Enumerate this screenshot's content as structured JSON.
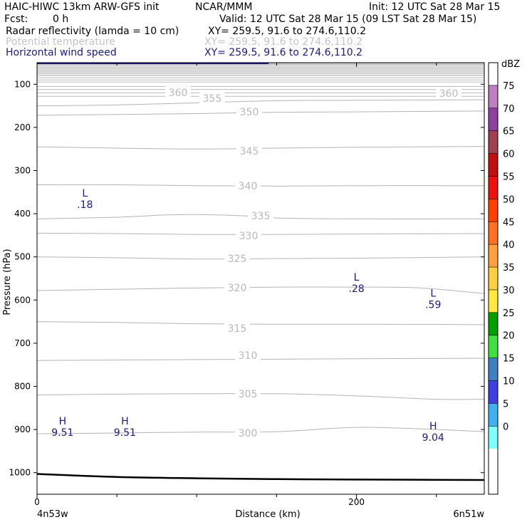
{
  "header": {
    "model": "HAIC-HIWC 13km ARW-GFS init",
    "org": "NCAR/MMM",
    "init": "Init: 12 UTC Sat 28 Mar 15",
    "fcst_label": "Fcst:",
    "fcst_value": "0 h",
    "valid": "Valid: 12 UTC Sat 28 Mar 15 (09 LST Sat 28 Mar 15)",
    "fields": [
      {
        "name": "Radar reflectivity (lamda = 10 cm)",
        "xy": "XY= 259.5, 91.6 to 274.6,110.2",
        "color": "#000000"
      },
      {
        "name": "Potential temperature",
        "xy": "XY= 259.5, 91.6 to 274.6,110.2",
        "color": "#c4c4c4"
      },
      {
        "name": "Horizontal wind speed",
        "xy": "XY= 259.5, 91.6 to 274.6,110.2",
        "color": "#1a1a80"
      }
    ]
  },
  "chart_data": {
    "type": "line",
    "title": "",
    "xlabel": "Distance (km)",
    "ylabel": "Pressure (hPa)",
    "xlim": [
      0,
      280
    ],
    "ylim": [
      1050,
      50
    ],
    "y_ticks": [
      "100",
      "200",
      "300",
      "400",
      "500",
      "600",
      "700",
      "800",
      "900",
      "1000"
    ],
    "y_tick_values": [
      100,
      200,
      300,
      400,
      500,
      600,
      700,
      800,
      900,
      1000
    ],
    "x_ticks": [
      "0",
      "200"
    ],
    "x_tick_values": [
      0,
      200
    ],
    "x_minor_tick_values": [
      50,
      100,
      150,
      250
    ],
    "endpoints": {
      "left": "4n53w",
      "right": "6n51w"
    },
    "potential_temperature_contours": [
      {
        "label": "360",
        "points": [
          [
            0,
            80
          ],
          [
            280,
            80
          ]
        ]
      },
      {
        "label": "355",
        "points": [
          [
            0,
            150
          ],
          [
            50,
            148
          ],
          [
            100,
            143
          ],
          [
            150,
            138
          ],
          [
            200,
            137
          ],
          [
            280,
            136
          ]
        ]
      },
      {
        "label": "350",
        "points": [
          [
            0,
            172
          ],
          [
            50,
            170
          ],
          [
            100,
            168
          ],
          [
            150,
            165
          ],
          [
            200,
            164
          ],
          [
            280,
            162
          ]
        ]
      },
      {
        "label": "345",
        "points": [
          [
            0,
            245
          ],
          [
            50,
            248
          ],
          [
            100,
            250
          ],
          [
            150,
            248
          ],
          [
            200,
            246
          ],
          [
            280,
            244
          ]
        ]
      },
      {
        "label": "340",
        "points": [
          [
            0,
            333
          ],
          [
            50,
            333
          ],
          [
            100,
            335
          ],
          [
            150,
            336
          ],
          [
            200,
            335
          ],
          [
            280,
            335
          ]
        ]
      },
      {
        "label": "335",
        "points": [
          [
            0,
            412
          ],
          [
            50,
            408
          ],
          [
            80,
            403
          ],
          [
            100,
            402
          ],
          [
            130,
            405
          ],
          [
            150,
            410
          ],
          [
            200,
            412
          ],
          [
            280,
            412
          ]
        ]
      },
      {
        "label": "330",
        "points": [
          [
            0,
            445
          ],
          [
            50,
            446
          ],
          [
            100,
            448
          ],
          [
            150,
            448
          ],
          [
            200,
            447
          ],
          [
            280,
            446
          ]
        ]
      },
      {
        "label": "325",
        "points": [
          [
            0,
            500
          ],
          [
            50,
            502
          ],
          [
            100,
            505
          ],
          [
            150,
            504
          ],
          [
            200,
            503
          ],
          [
            280,
            500
          ]
        ]
      },
      {
        "label": "320",
        "points": [
          [
            0,
            578
          ],
          [
            50,
            575
          ],
          [
            100,
            572
          ],
          [
            150,
            570
          ],
          [
            200,
            570
          ],
          [
            240,
            572
          ],
          [
            280,
            585
          ]
        ]
      },
      {
        "label": "315",
        "points": [
          [
            0,
            650
          ],
          [
            50,
            652
          ],
          [
            100,
            655
          ],
          [
            150,
            656
          ],
          [
            200,
            656
          ],
          [
            280,
            657
          ]
        ]
      },
      {
        "label": "310",
        "points": [
          [
            0,
            740
          ],
          [
            50,
            739
          ],
          [
            100,
            738
          ],
          [
            150,
            737
          ],
          [
            200,
            736
          ],
          [
            280,
            735
          ]
        ]
      },
      {
        "label": "305",
        "points": [
          [
            0,
            820
          ],
          [
            50,
            818
          ],
          [
            100,
            817
          ],
          [
            150,
            817
          ],
          [
            200,
            822
          ],
          [
            250,
            830
          ],
          [
            280,
            830
          ]
        ]
      },
      {
        "label": "300",
        "points": [
          [
            0,
            910
          ],
          [
            50,
            908
          ],
          [
            100,
            906
          ],
          [
            150,
            905
          ],
          [
            200,
            895
          ],
          [
            250,
            900
          ],
          [
            280,
            905
          ]
        ]
      }
    ],
    "upper_level_lines": [
      55,
      58,
      61,
      64,
      67,
      70,
      73,
      76,
      80,
      85,
      90,
      95,
      105,
      112,
      120,
      128
    ],
    "surface_pressure": [
      [
        0,
        1003
      ],
      [
        50,
        1010
      ],
      [
        100,
        1013
      ],
      [
        150,
        1015
      ],
      [
        200,
        1016
      ],
      [
        280,
        1017
      ]
    ],
    "wind_markers": [
      {
        "type": "L",
        "value": ".18",
        "x": 30,
        "p": 360
      },
      {
        "type": "L",
        "value": ".28",
        "x": 200,
        "p": 555
      },
      {
        "type": "L",
        "value": ".59",
        "x": 248,
        "p": 592
      },
      {
        "type": "H",
        "value": "9.51",
        "x": 16,
        "p": 888
      },
      {
        "type": "H",
        "value": "9.51",
        "x": 55,
        "p": 888
      },
      {
        "type": "H",
        "value": "9.04",
        "x": 248,
        "p": 900
      }
    ],
    "colorbar": {
      "unit": "dBZ",
      "labels": [
        "75",
        "70",
        "65",
        "60",
        "55",
        "50",
        "45",
        "40",
        "35",
        "30",
        "25",
        "20",
        "15",
        "10",
        "5",
        "0"
      ],
      "colors": [
        "#ffffff",
        "#c080c0",
        "#9040a0",
        "#a04050",
        "#c01010",
        "#ee1010",
        "#ff4000",
        "#ff7020",
        "#ffa040",
        "#ffd040",
        "#ffe840",
        "#00a000",
        "#40e040",
        "#4080c0",
        "#4040e0",
        "#40b0f0",
        "#80ffff",
        "#ffffff",
        "#ffffff"
      ]
    }
  }
}
